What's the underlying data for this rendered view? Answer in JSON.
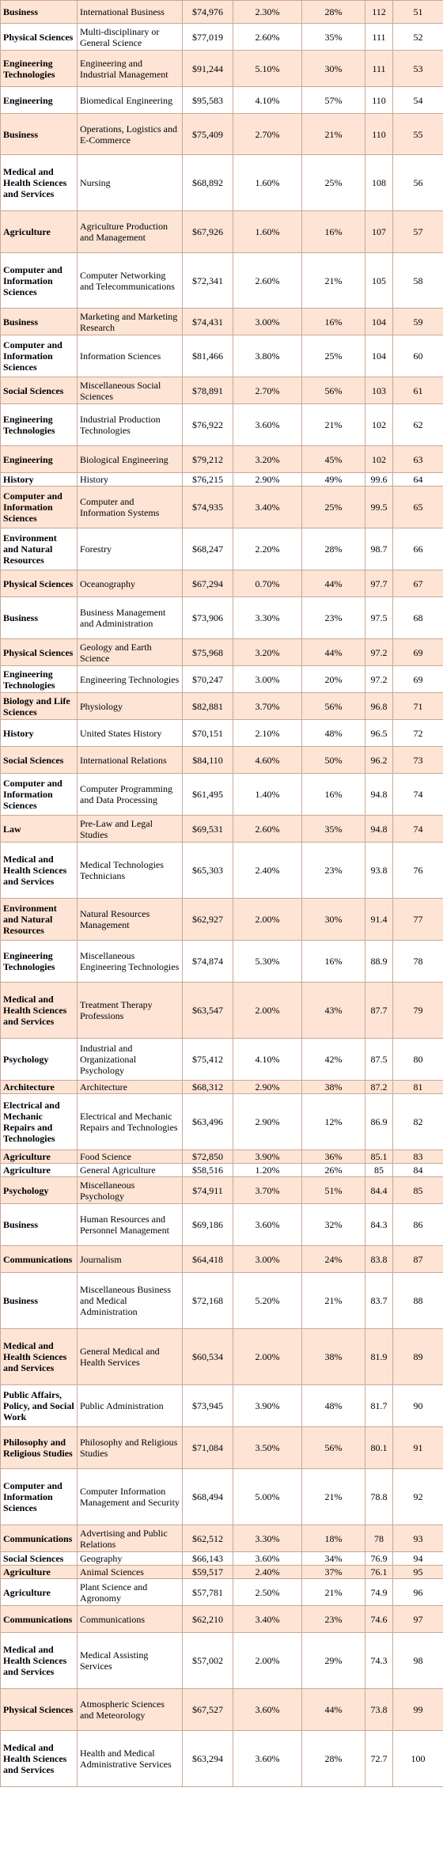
{
  "rows": [
    {
      "category": "Business",
      "major": "International Business",
      "salary": "$74,976",
      "unemployment": "2.30%",
      "women": "28%",
      "score": "112",
      "rank": "51",
      "h": 29
    },
    {
      "category": "Physical Sciences",
      "major": "Multi-disciplinary or General Science",
      "salary": "$77,019",
      "unemployment": "2.60%",
      "women": "35%",
      "score": "111",
      "rank": "52",
      "h": 34
    },
    {
      "category": "Engineering Technologies",
      "major": "Engineering and Industrial Management",
      "salary": "$91,244",
      "unemployment": "5.10%",
      "women": "30%",
      "score": "111",
      "rank": "53",
      "h": 46
    },
    {
      "category": "Engineering",
      "major": "Biomedical Engineering",
      "salary": "$95,583",
      "unemployment": "4.10%",
      "women": "57%",
      "score": "110",
      "rank": "54",
      "h": 34
    },
    {
      "category": "Business",
      "major": "Operations, Logistics and E-Commerce",
      "salary": "$75,409",
      "unemployment": "2.70%",
      "women": "21%",
      "score": "110",
      "rank": "55",
      "h": 52
    },
    {
      "category": "Medical and Health Sciences and Services",
      "major": "Nursing",
      "salary": "$68,892",
      "unemployment": "1.60%",
      "women": "25%",
      "score": "108",
      "rank": "56",
      "h": 71
    },
    {
      "category": "Agriculture",
      "major": "Agriculture Production and Management",
      "salary": "$67,926",
      "unemployment": "1.60%",
      "women": "16%",
      "score": "107",
      "rank": "57",
      "h": 53
    },
    {
      "category": "Computer and Information Sciences",
      "major": "Computer Networking and Telecommunications",
      "salary": "$72,341",
      "unemployment": "2.60%",
      "women": "21%",
      "score": "105",
      "rank": "58",
      "h": 70
    },
    {
      "category": "Business",
      "major": "Marketing and Marketing Research",
      "salary": "$74,431",
      "unemployment": "3.00%",
      "women": "16%",
      "score": "104",
      "rank": "59",
      "h": 34
    },
    {
      "category": "Computer and Information Sciences",
      "major": "Information Sciences",
      "salary": "$81,466",
      "unemployment": "3.80%",
      "women": "25%",
      "score": "104",
      "rank": "60",
      "h": 53
    },
    {
      "category": "Social Sciences",
      "major": "Miscellaneous Social Sciences",
      "salary": "$78,891",
      "unemployment": "2.70%",
      "women": "56%",
      "score": "103",
      "rank": "61",
      "h": 34
    },
    {
      "category": "Engineering Technologies",
      "major": "Industrial Production Technologies",
      "salary": "$76,922",
      "unemployment": "3.60%",
      "women": "21%",
      "score": "102",
      "rank": "62",
      "h": 53
    },
    {
      "category": "Engineering",
      "major": "Biological Engineering",
      "salary": "$79,212",
      "unemployment": "3.20%",
      "women": "45%",
      "score": "102",
      "rank": "63",
      "h": 34
    },
    {
      "category": "History",
      "major": "History",
      "salary": "$76,215",
      "unemployment": "2.90%",
      "women": "49%",
      "score": "99.6",
      "rank": "64",
      "h": 17
    },
    {
      "category": "Computer and Information Sciences",
      "major": "Computer and Information Systems",
      "salary": "$74,935",
      "unemployment": "3.40%",
      "women": "25%",
      "score": "99.5",
      "rank": "65",
      "h": 53
    },
    {
      "category": "Environment and Natural Resources",
      "major": "Forestry",
      "salary": "$68,247",
      "unemployment": "2.20%",
      "women": "28%",
      "score": "98.7",
      "rank": "66",
      "h": 53
    },
    {
      "category": "Physical Sciences",
      "major": "Oceanography",
      "salary": "$67,294",
      "unemployment": "0.70%",
      "women": "44%",
      "score": "97.7",
      "rank": "67",
      "h": 34
    },
    {
      "category": "Business",
      "major": "Business Management and Administration",
      "salary": "$73,906",
      "unemployment": "3.30%",
      "women": "23%",
      "score": "97.5",
      "rank": "68",
      "h": 53
    },
    {
      "category": "Physical Sciences",
      "major": "Geology and Earth Science",
      "salary": "$75,968",
      "unemployment": "3.20%",
      "women": "44%",
      "score": "97.2",
      "rank": "69",
      "h": 34
    },
    {
      "category": "Engineering Technologies",
      "major": "Engineering Technologies",
      "salary": "$70,247",
      "unemployment": "3.00%",
      "women": "20%",
      "score": "97.2",
      "rank": "69",
      "h": 34
    },
    {
      "category": "Biology and Life Sciences",
      "major": "Physiology",
      "salary": "$82,881",
      "unemployment": "3.70%",
      "women": "56%",
      "score": "96.8",
      "rank": "71",
      "h": 34
    },
    {
      "category": "History",
      "major": "United States History",
      "salary": "$70,151",
      "unemployment": "2.10%",
      "women": "48%",
      "score": "96.5",
      "rank": "72",
      "h": 34
    },
    {
      "category": "Social Sciences",
      "major": "International Relations",
      "salary": "$84,110",
      "unemployment": "4.60%",
      "women": "50%",
      "score": "96.2",
      "rank": "73",
      "h": 34
    },
    {
      "category": "Computer and Information Sciences",
      "major": "Computer Programming and Data Processing",
      "salary": "$61,495",
      "unemployment": "1.40%",
      "women": "16%",
      "score": "94.8",
      "rank": "74",
      "h": 53
    },
    {
      "category": "Law",
      "major": "Pre-Law and Legal Studies",
      "salary": "$69,531",
      "unemployment": "2.60%",
      "women": "35%",
      "score": "94.8",
      "rank": "74",
      "h": 34
    },
    {
      "category": "Medical and Health Sciences and Services",
      "major": "Medical Technologies Technicians",
      "salary": "$65,303",
      "unemployment": "2.40%",
      "women": "23%",
      "score": "93.8",
      "rank": "76",
      "h": 71
    },
    {
      "category": "Environment and Natural Resources",
      "major": "Natural Resources Management",
      "salary": "$62,927",
      "unemployment": "2.00%",
      "women": "30%",
      "score": "91.4",
      "rank": "77",
      "h": 53
    },
    {
      "category": "Engineering Technologies",
      "major": "Miscellaneous Engineering Technologies",
      "salary": "$74,874",
      "unemployment": "5.30%",
      "women": "16%",
      "score": "88.9",
      "rank": "78",
      "h": 53
    },
    {
      "category": "Medical and Health Sciences and Services",
      "major": "Treatment Therapy Professions",
      "salary": "$63,547",
      "unemployment": "2.00%",
      "women": "43%",
      "score": "87.7",
      "rank": "79",
      "h": 71
    },
    {
      "category": "Psychology",
      "major": "Industrial and Organizational Psychology",
      "salary": "$75,412",
      "unemployment": "4.10%",
      "women": "42%",
      "score": "87.5",
      "rank": "80",
      "h": 53
    },
    {
      "category": "Architecture",
      "major": "Architecture",
      "salary": "$68,312",
      "unemployment": "2.90%",
      "women": "38%",
      "score": "87.2",
      "rank": "81",
      "h": 17
    },
    {
      "category": "Electrical and Mechanic Repairs and Technologies",
      "major": "Electrical and Mechanic Repairs and Technologies",
      "salary": "$63,496",
      "unemployment": "2.90%",
      "women": "12%",
      "score": "86.9",
      "rank": "82",
      "h": 71
    },
    {
      "category": "Agriculture",
      "major": "Food Science",
      "salary": "$72,850",
      "unemployment": "3.90%",
      "women": "36%",
      "score": "85.1",
      "rank": "83",
      "h": 17
    },
    {
      "category": "Agriculture",
      "major": "General Agriculture",
      "salary": "$58,516",
      "unemployment": "1.20%",
      "women": "26%",
      "score": "85",
      "rank": "84",
      "h": 17
    },
    {
      "category": "Psychology",
      "major": "Miscellaneous Psychology",
      "salary": "$74,911",
      "unemployment": "3.70%",
      "women": "51%",
      "score": "84.4",
      "rank": "85",
      "h": 34
    },
    {
      "category": "Business",
      "major": "Human Resources and Personnel Management",
      "salary": "$69,186",
      "unemployment": "3.60%",
      "women": "32%",
      "score": "84.3",
      "rank": "86",
      "h": 53
    },
    {
      "category": "Communications",
      "major": "Journalism",
      "salary": "$64,418",
      "unemployment": "3.00%",
      "women": "24%",
      "score": "83.8",
      "rank": "87",
      "h": 34
    },
    {
      "category": "Business",
      "major": "Miscellaneous Business and Medical Administration",
      "salary": "$72,168",
      "unemployment": "5.20%",
      "women": "21%",
      "score": "83.7",
      "rank": "88",
      "h": 71
    },
    {
      "category": "Medical and Health Sciences and Services",
      "major": "General Medical and Health Services",
      "salary": "$60,534",
      "unemployment": "2.00%",
      "women": "38%",
      "score": "81.9",
      "rank": "89",
      "h": 71
    },
    {
      "category": "Public Affairs, Policy, and Social Work",
      "major": "Public Administration",
      "salary": "$73,945",
      "unemployment": "3.90%",
      "women": "48%",
      "score": "81.7",
      "rank": "90",
      "h": 53
    },
    {
      "category": "Philosophy and Religious Studies",
      "major": "Philosophy and Religious Studies",
      "salary": "$71,084",
      "unemployment": "3.50%",
      "women": "56%",
      "score": "80.1",
      "rank": "91",
      "h": 53
    },
    {
      "category": "Computer and Information Sciences",
      "major": "Computer Information Management and Security",
      "salary": "$68,494",
      "unemployment": "5.00%",
      "women": "21%",
      "score": "78.8",
      "rank": "92",
      "h": 71
    },
    {
      "category": "Communications",
      "major": "Advertising and Public Relations",
      "salary": "$62,512",
      "unemployment": "3.30%",
      "women": "18%",
      "score": "78",
      "rank": "93",
      "h": 34
    },
    {
      "category": "Social Sciences",
      "major": "Geography",
      "salary": "$66,143",
      "unemployment": "3.60%",
      "women": "34%",
      "score": "76.9",
      "rank": "94",
      "h": 17
    },
    {
      "category": "Agriculture",
      "major": "Animal Sciences",
      "salary": "$59,517",
      "unemployment": "2.40%",
      "women": "37%",
      "score": "76.1",
      "rank": "95",
      "h": 17
    },
    {
      "category": "Agriculture",
      "major": "Plant Science and Agronomy",
      "salary": "$57,781",
      "unemployment": "2.50%",
      "women": "21%",
      "score": "74.9",
      "rank": "96",
      "h": 34
    },
    {
      "category": "Communications",
      "major": "Communications",
      "salary": "$62,210",
      "unemployment": "3.40%",
      "women": "23%",
      "score": "74.6",
      "rank": "97",
      "h": 34
    },
    {
      "category": "Medical and Health Sciences and Services",
      "major": "Medical Assisting Services",
      "salary": "$57,002",
      "unemployment": "2.00%",
      "women": "29%",
      "score": "74.3",
      "rank": "98",
      "h": 71
    },
    {
      "category": "Physical Sciences",
      "major": "Atmospheric Sciences and Meteorology",
      "salary": "$67,527",
      "unemployment": "3.60%",
      "women": "44%",
      "score": "73.8",
      "rank": "99",
      "h": 53
    },
    {
      "category": "Medical and Health Sciences and Services",
      "major": "Health and Medical Administrative Services",
      "salary": "$63,294",
      "unemployment": "3.60%",
      "women": "28%",
      "score": "72.7",
      "rank": "100",
      "h": 71
    }
  ]
}
